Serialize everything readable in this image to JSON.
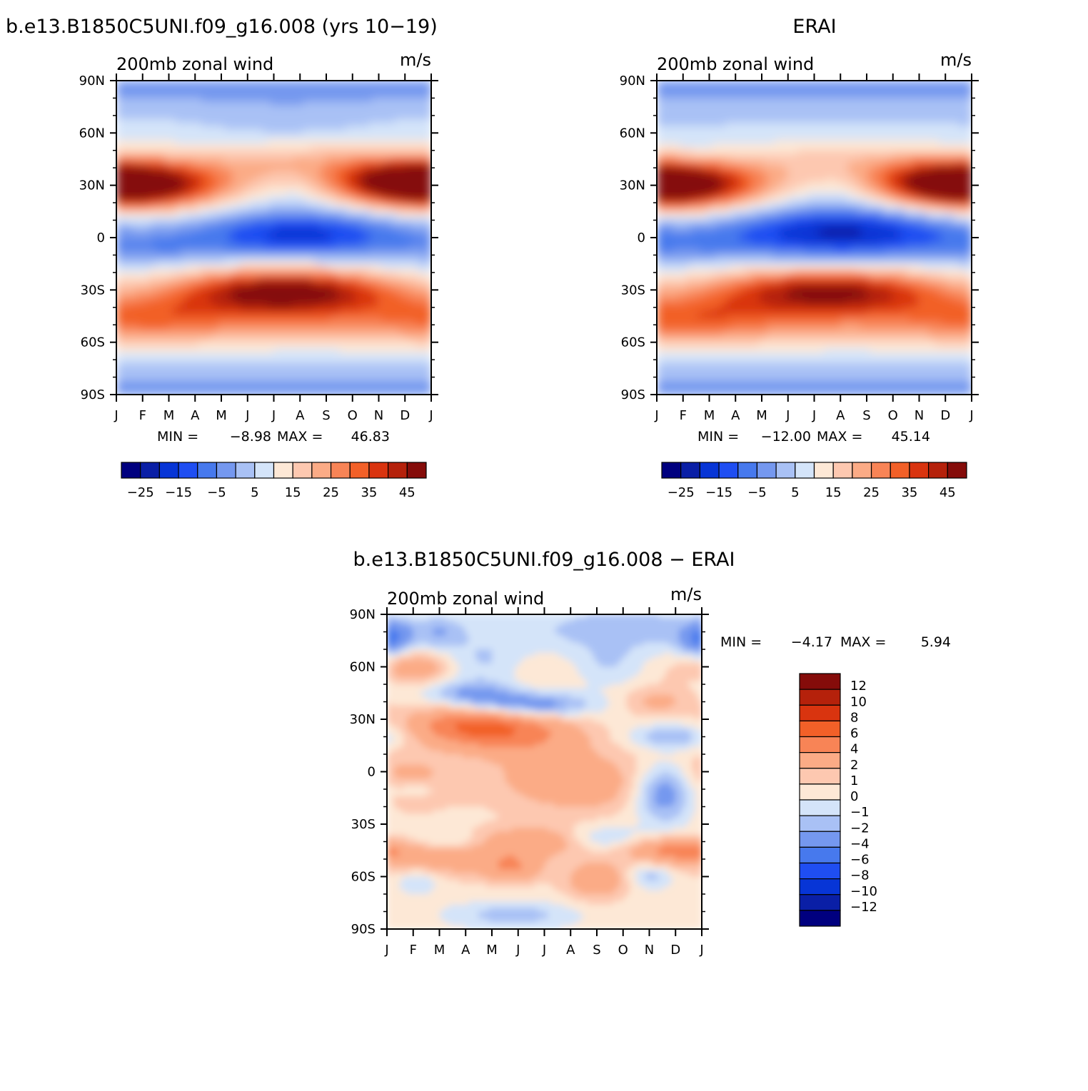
{
  "chart_data": [
    {
      "type": "heatmap",
      "title": "b.e13.B1850C5UNI.f09_g16.008 (yrs 10-19)",
      "subtitle_left": "200mb zonal wind",
      "subtitle_right": "m/s",
      "x_ticks": [
        "J",
        "F",
        "M",
        "A",
        "M",
        "J",
        "J",
        "A",
        "S",
        "O",
        "N",
        "D",
        "J"
      ],
      "y_ticks": [
        "90N",
        "60N",
        "30N",
        "0",
        "30S",
        "60S",
        "90S"
      ],
      "y_values": [
        90,
        60,
        30,
        0,
        -30,
        -60,
        -90
      ],
      "xlim": [
        0,
        12
      ],
      "ylim": [
        -90,
        90
      ],
      "min_label": "MIN =",
      "min_value": "-8.98",
      "max_label": "MAX =",
      "max_value": "46.83",
      "colorbar_levels": [
        -30,
        -25,
        -20,
        -15,
        -10,
        -5,
        0,
        5,
        10,
        15,
        20,
        25,
        30,
        35,
        40,
        45
      ],
      "colorbar_labels": [
        "-25",
        "-15",
        "-5",
        "5",
        "15",
        "25",
        "35",
        "45"
      ],
      "features": [
        {
          "type": "jet",
          "lat": 30,
          "peak_month": 1.0,
          "peak_value": 46
        },
        {
          "type": "jet",
          "lat": -30,
          "peak_month": 6.4,
          "peak_value": 46
        },
        {
          "type": "easterly",
          "lat": 2,
          "peak_month": 7.0,
          "peak_value": -8
        }
      ]
    },
    {
      "type": "heatmap",
      "title": "ERAI",
      "subtitle_left": "200mb zonal wind",
      "subtitle_right": "m/s",
      "x_ticks": [
        "J",
        "F",
        "M",
        "A",
        "M",
        "J",
        "J",
        "A",
        "S",
        "O",
        "N",
        "D",
        "J"
      ],
      "y_ticks": [
        "90N",
        "60N",
        "30N",
        "0",
        "30S",
        "60S",
        "90S"
      ],
      "y_values": [
        90,
        60,
        30,
        0,
        -30,
        -60,
        -90
      ],
      "xlim": [
        0,
        12
      ],
      "ylim": [
        -90,
        90
      ],
      "min_label": "MIN =",
      "min_value": "-12.00",
      "max_label": "MAX =",
      "max_value": "45.14",
      "colorbar_levels": [
        -30,
        -25,
        -20,
        -15,
        -10,
        -5,
        0,
        5,
        10,
        15,
        20,
        25,
        30,
        35,
        40,
        45
      ],
      "colorbar_labels": [
        "-25",
        "-15",
        "-5",
        "5",
        "15",
        "25",
        "35",
        "45"
      ],
      "features": [
        {
          "type": "jet",
          "lat": 30,
          "peak_month": 1.0,
          "peak_value": 44
        },
        {
          "type": "jet",
          "lat": -30,
          "peak_month": 6.5,
          "peak_value": 42
        },
        {
          "type": "easterly",
          "lat": 4,
          "peak_month": 7.0,
          "peak_value": -12
        }
      ]
    },
    {
      "type": "heatmap",
      "title": "b.e13.B1850C5UNI.f09_g16.008 - ERAI",
      "subtitle_left": "200mb zonal wind",
      "subtitle_right": "m/s",
      "x_ticks": [
        "J",
        "F",
        "M",
        "A",
        "M",
        "J",
        "J",
        "A",
        "S",
        "O",
        "N",
        "D",
        "J"
      ],
      "y_ticks": [
        "90N",
        "60N",
        "30N",
        "0",
        "30S",
        "60S",
        "90S"
      ],
      "y_values": [
        90,
        60,
        30,
        0,
        -30,
        -60,
        -90
      ],
      "xlim": [
        0,
        12
      ],
      "ylim": [
        -90,
        90
      ],
      "min_label": "MIN =",
      "min_value": "-4.17",
      "max_label": "MAX =",
      "max_value": "5.94",
      "colorbar_levels": [
        -12,
        -10,
        -8,
        -6,
        -4,
        -2,
        -1,
        0,
        1,
        2,
        4,
        6,
        8,
        10,
        12
      ],
      "colorbar_labels": [
        "12",
        "10",
        "8",
        "6",
        "4",
        "2",
        "1",
        "0",
        "-1",
        "-2",
        "-4",
        "-6",
        "-8",
        "-10",
        "-12"
      ]
    }
  ],
  "colors": {
    "diverging": [
      "#00007f",
      "#0a1fa6",
      "#0735d6",
      "#1f4ef2",
      "#4779ed",
      "#7598ef",
      "#a9c1f5",
      "#d4e4f9",
      "#fde8d6",
      "#fdc8b0",
      "#fbab86",
      "#f88456",
      "#f26028",
      "#d9340f",
      "#b5210b",
      "#850c0a"
    ]
  }
}
